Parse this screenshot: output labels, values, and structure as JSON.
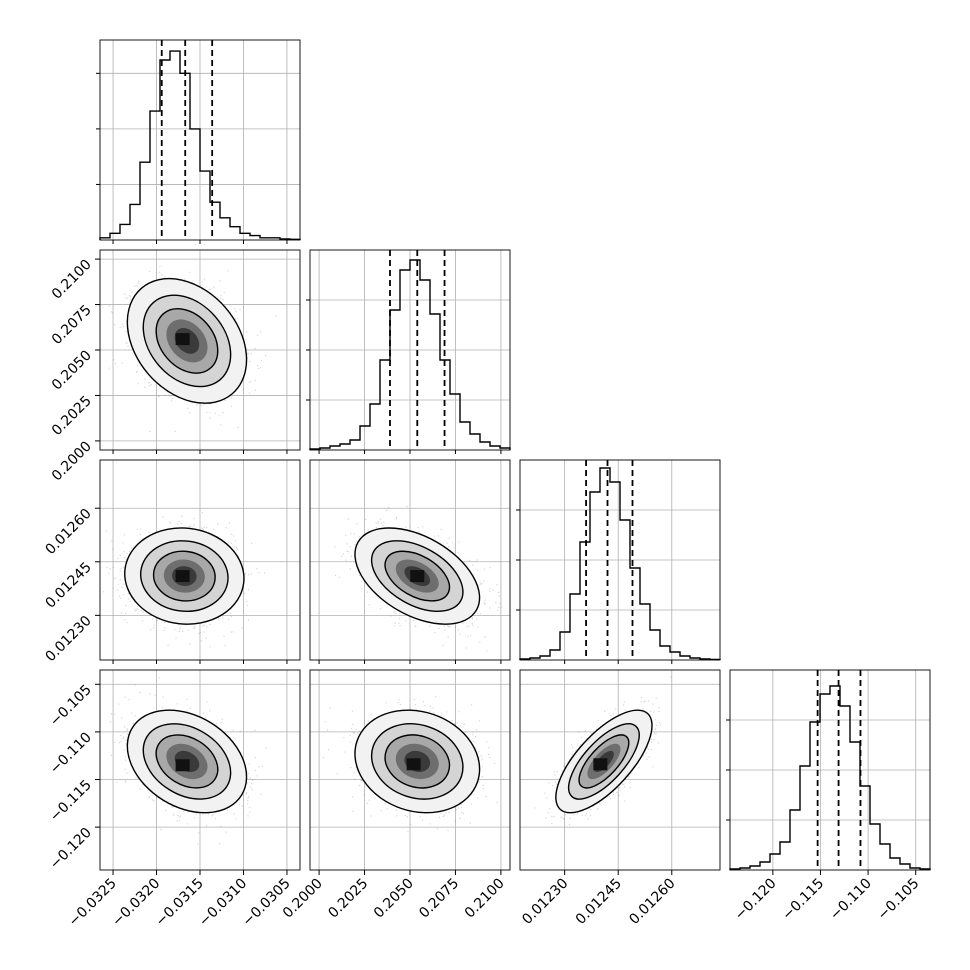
{
  "chart_data": {
    "type": "scatter",
    "title": "",
    "params": [
      {
        "range": [
          -0.03265,
          -0.03035
        ],
        "xticks": [
          {
            "v": -0.0325,
            "label": "−0.0325"
          },
          {
            "v": -0.032,
            "label": "−0.0320"
          },
          {
            "v": -0.0315,
            "label": "−0.0315"
          },
          {
            "v": -0.031,
            "label": "−0.0310"
          },
          {
            "v": -0.0305,
            "label": "−0.0305"
          }
        ],
        "yticks": [],
        "quantiles": [
          -0.03194,
          -0.03167,
          -0.03136
        ],
        "hist": [
          1,
          3,
          7,
          16,
          35,
          58,
          81,
          85,
          75,
          50,
          31,
          17,
          10,
          6,
          3,
          2,
          1,
          1,
          0.5,
          0.3
        ],
        "hist_ymax": 90,
        "hist_gridlines": [
          25,
          50,
          75
        ]
      },
      {
        "range": [
          0.1995,
          0.2105
        ],
        "xticks": [
          {
            "v": 0.2,
            "label": "0.2000"
          },
          {
            "v": 0.2025,
            "label": "0.2025"
          },
          {
            "v": 0.205,
            "label": "0.2050"
          },
          {
            "v": 0.2075,
            "label": "0.2075"
          },
          {
            "v": 0.21,
            "label": "0.2100"
          }
        ],
        "yticks": [
          {
            "v": 0.2,
            "label": "0.2000"
          },
          {
            "v": 0.2025,
            "label": "0.2025"
          },
          {
            "v": 0.205,
            "label": "0.2050"
          },
          {
            "v": 0.2075,
            "label": "0.2075"
          },
          {
            "v": 0.21,
            "label": "0.2100"
          }
        ],
        "quantiles": [
          0.2039,
          0.2054,
          0.2069
        ],
        "hist": [
          0.5,
          1,
          2,
          3,
          5,
          12,
          23,
          45,
          70,
          90,
          95,
          85,
          68,
          45,
          28,
          14,
          8,
          4,
          2,
          1
        ],
        "hist_ymax": 100,
        "hist_gridlines": [
          25,
          50,
          75
        ]
      },
      {
        "range": [
          0.012175,
          0.012735
        ],
        "xticks": [
          {
            "v": 0.0123,
            "label": "0.01230"
          },
          {
            "v": 0.01245,
            "label": "0.01245"
          },
          {
            "v": 0.0126,
            "label": "0.01260"
          }
        ],
        "yticks": [
          {
            "v": 0.0123,
            "label": "0.01230"
          },
          {
            "v": 0.01245,
            "label": "0.01245"
          },
          {
            "v": 0.0126,
            "label": "0.01260"
          }
        ],
        "quantiles": [
          0.01236,
          0.01242,
          0.01249
        ],
        "hist": [
          0.5,
          1,
          2,
          5,
          14,
          33,
          59,
          84,
          96,
          89,
          70,
          46,
          28,
          15,
          7,
          4,
          2,
          1,
          0.5,
          0.3
        ],
        "hist_ymax": 100,
        "hist_gridlines": [
          25,
          50,
          75
        ]
      },
      {
        "range": [
          -0.1245,
          -0.1035
        ],
        "xticks": [
          {
            "v": -0.12,
            "label": "−0.120"
          },
          {
            "v": -0.115,
            "label": "−0.115"
          },
          {
            "v": -0.11,
            "label": "−0.110"
          },
          {
            "v": -0.105,
            "label": "−0.105"
          }
        ],
        "yticks": [
          {
            "v": -0.105,
            "label": "−0.105"
          },
          {
            "v": -0.11,
            "label": "−0.110"
          },
          {
            "v": -0.115,
            "label": "−0.115"
          },
          {
            "v": -0.12,
            "label": "−0.120"
          }
        ],
        "quantiles": [
          -0.1153,
          -0.1131,
          -0.1108
        ],
        "hist": [
          0.5,
          1,
          2,
          4,
          8,
          14,
          30,
          52,
          74,
          88,
          92,
          82,
          64,
          42,
          23,
          13,
          6,
          3,
          1,
          0.5
        ],
        "hist_ymax": 100,
        "hist_gridlines": [
          25,
          50,
          75
        ]
      }
    ],
    "pairs": [
      {
        "x": 0,
        "y": 1,
        "mean": [
          -0.03165,
          0.2055
        ],
        "sd": [
          0.00028,
          0.0014
        ],
        "rho": -0.3,
        "peak": [
          -0.0317,
          0.2056
        ]
      },
      {
        "x": 0,
        "y": 2,
        "mean": [
          -0.03168,
          0.01241
        ],
        "sd": [
          0.00028,
          5.5e-05
        ],
        "rho": -0.05,
        "peak": [
          -0.0317,
          0.01241
        ]
      },
      {
        "x": 1,
        "y": 2,
        "mean": [
          0.2054,
          0.01241
        ],
        "sd": [
          0.0014,
          5.5e-05
        ],
        "rho": -0.45,
        "peak": [
          0.2054,
          0.01241
        ]
      },
      {
        "x": 0,
        "y": 3,
        "mean": [
          -0.03165,
          -0.1131
        ],
        "sd": [
          0.00028,
          0.0022
        ],
        "rho": -0.3,
        "peak": [
          -0.0317,
          -0.1135
        ]
      },
      {
        "x": 1,
        "y": 3,
        "mean": [
          0.2054,
          -0.1131
        ],
        "sd": [
          0.0014,
          0.0022
        ],
        "rho": -0.15,
        "peak": [
          0.2052,
          -0.1134
        ]
      },
      {
        "x": 2,
        "y": 3,
        "mean": [
          0.01241,
          -0.1131
        ],
        "sd": [
          5.5e-05,
          0.0022
        ],
        "rho": 0.7,
        "peak": [
          0.0124,
          -0.1134
        ]
      }
    ],
    "contour_levels": [
      0.95,
      0.8,
      0.55
    ],
    "colors": {
      "line": "#000000",
      "grid": "#b0b0b0",
      "points": "#8a8a8a",
      "background": "#ffffff"
    }
  }
}
